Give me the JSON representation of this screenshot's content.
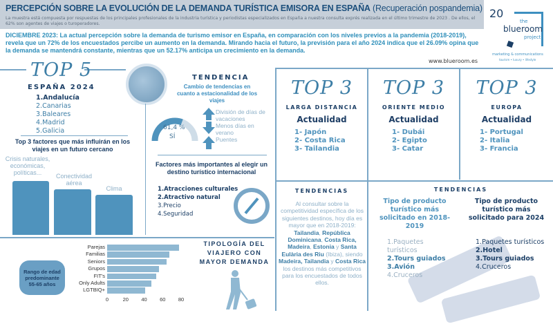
{
  "header": {
    "title": "PERCEPCIÓN SOBRE LA EVOLUCIÓN DE LA DEMANDA TURÍSTICA EMISORA EN ESPAÑA",
    "title_suffix": "(Recuperación pospandemia)",
    "subtitle": "La muestra está compuesta por respuestas de los principales profesionales de la industria turística y periodistas especializados en España a nuestra consulta exprés realizada en el último trimestre de 2023 . De ellos, el 62% son agentes de viajes o turoperadores."
  },
  "intro": "DICIEMBRE 2023: La actual percepción sobre la demanda de turismo emisor en España, en comparación con los niveles previos a la pandemia (2018-2019), revela que un 72% de los encuestados percibe un aumento en la demanda. Mirando hacia el futuro, la previsión para el año 2024 indica que el 26.09% opina que la demanda se mantendrá constante, mientras que un 52.17% anticipa un crecimiento en la demanda.",
  "url": "www.blueroom.es",
  "logo": {
    "number": "20",
    "the": "the",
    "name": "blueroom",
    "project": "project",
    "tagline": "marketing & communications",
    "sub": "tourism • luxury • lifestyle"
  },
  "top5": {
    "script": "TOP 5",
    "heading": "ESPAÑA 2024",
    "items": [
      "1.Andalucía",
      "2.Canarias",
      "3.Baleares",
      "4.Madrid",
      "5.Galicia"
    ]
  },
  "factors": {
    "title": "Top 3 factores que más influirán en los viajes en un futuro cercano",
    "labels": [
      "Crisis naturales, económicas, políticas...",
      "Conectividad aérea",
      "Clima"
    ]
  },
  "tendencia": {
    "title": "TENDENCIA",
    "subtitle": "Cambio de tendencias en cuanto a estacionalidad de los viajes",
    "gauge_percent": 61.4,
    "gauge_label": "61,4 %",
    "gauge_sub": "SÍ",
    "items": [
      "División de días de vacaciones",
      "Menos días en verano",
      "Puentes"
    ]
  },
  "destino": {
    "title": "Factores más importantes al elegir un destino turístico internacional",
    "items": [
      "1.Atracciones culturales",
      "2.Atractivo natural",
      "3.Precio",
      "4.Seguridad"
    ]
  },
  "tipologia": {
    "title": "TIPOLOGÍA DEL VIAJERO CON MAYOR DEMANDA",
    "age": "Rango de edad predominante 55-65 años"
  },
  "chart_data": {
    "type": "bar",
    "orientation": "horizontal",
    "categories": [
      "Parejas",
      "Familias",
      "Seniors",
      "Grupos",
      "FIT's",
      "Only Adults",
      "LGTBIQ+"
    ],
    "values": [
      78,
      67,
      64,
      56,
      53,
      48,
      41
    ],
    "xlim": [
      0,
      80
    ],
    "xticks": [
      "0",
      "20",
      "40",
      "60",
      "80"
    ],
    "color": "#8fb8d2"
  },
  "top3": [
    {
      "script": "TOP 3",
      "region": "LARGA DISTANCIA",
      "label": "Actualidad",
      "items": [
        "1- Japón",
        "2- Costa Rica",
        "3- Tailandia"
      ]
    },
    {
      "script": "TOP 3",
      "region": "ORIENTE MEDIO",
      "label": "Actualidad",
      "items": [
        "1- Dubái",
        "2- Egipto",
        "3- Catar"
      ]
    },
    {
      "script": "TOP 3",
      "region": "EUROPA",
      "label": "Actualidad",
      "items": [
        "1- Portugal",
        "2- Italia",
        "3- Francia"
      ]
    }
  ],
  "tendencias1": {
    "title": "TENDENCIAS",
    "p1": "Al consultar sobre la competitividad específica de los siguientes destinos, hoy día es mayor que en 2018-2019: ",
    "b1": "Tailandia",
    "p2": ", ",
    "b2": "República Dominicana",
    "p3": ", ",
    "b3": "Costa Rica, Madeira",
    "p4": ", ",
    "b4": "Estonia",
    "p5": " y ",
    "b5": "Santa Eulària des Riu",
    "p6": " (Ibiza), siendo ",
    "b6": "Madeira, Tailandia",
    "p7": " y ",
    "b7": "Costa Rica",
    "p8": " los destinos más competitivos para los encuestados de todos ellos."
  },
  "tendencias2": {
    "title": "TENDENCIAS",
    "col1": {
      "title": "Tipo de producto turístico más solicitado en 2018-2019",
      "items": [
        "1.Paquetes turísticos",
        "2.Tours guiados",
        "3.Avión",
        "4.Cruceros"
      ]
    },
    "col2": {
      "title": "Tipo de producto turístico más solicitado para 2024",
      "items": [
        "1.Paquetes turísticos",
        "2.Hotel",
        "3.Tours guiados",
        "4.Cruceros"
      ]
    }
  },
  "colors": {
    "accent": "#4f93bd",
    "dark": "#1c3f66",
    "header_bg": "#c6cfd9",
    "intro": "#2f8fba"
  }
}
